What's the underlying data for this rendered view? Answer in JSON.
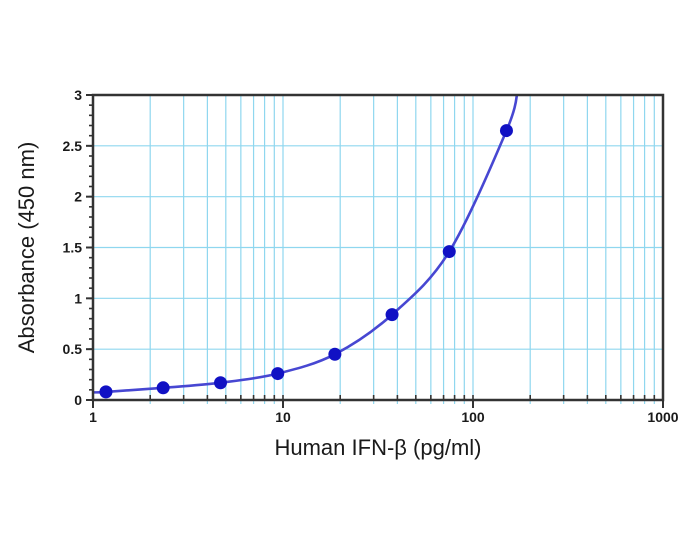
{
  "figure": {
    "kind": "elisa-standard-curve",
    "background": "#ffffff"
  },
  "chart_data": {
    "type": "scatter",
    "title": "",
    "xlabel": "Human IFN-β (pg/ml)",
    "ylabel": "Absorbance (450 nm)",
    "x_scale": "log",
    "xlim": [
      1,
      1000
    ],
    "ylim": [
      0,
      3
    ],
    "x_tick_labels": [
      "1",
      "10",
      "100",
      "1000"
    ],
    "x_tick_values": [
      1,
      10,
      100,
      1000
    ],
    "y_tick_labels": [
      "0",
      "0.5",
      "1",
      "1.5",
      "2",
      "2.5",
      "3"
    ],
    "y_tick_values": [
      0,
      0.5,
      1,
      1.5,
      2,
      2.5,
      3
    ],
    "y_minor_tick_step": 0.1,
    "grid": true,
    "x_gridline_values": [
      2,
      3,
      4,
      5,
      6,
      7,
      8,
      9,
      10,
      20,
      30,
      40,
      50,
      60,
      70,
      80,
      90,
      100,
      200,
      300,
      400,
      500,
      600,
      700,
      800,
      900
    ],
    "y_gridline_values": [
      0.5,
      1,
      1.5,
      2,
      2.5
    ],
    "series": [
      {
        "name": "standard-curve",
        "x": [
          1.17,
          2.34,
          4.69,
          9.38,
          18.75,
          37.5,
          75,
          150
        ],
        "y": [
          0.08,
          0.12,
          0.17,
          0.26,
          0.45,
          0.84,
          1.46,
          2.65
        ]
      }
    ],
    "curve_start": {
      "x": 1.0,
      "y": 0.075
    },
    "curve_exit_top": {
      "x": 172,
      "y": 3.05
    },
    "colors": {
      "grid": "#8fd7ef",
      "frame": "#333333",
      "curve": "#4747d2",
      "point": "#1111c4",
      "text": "#1a1a1a",
      "tick": "#333333"
    },
    "layout": {
      "plot_left": 93,
      "plot_top": 95,
      "plot_right": 663,
      "plot_bottom": 400,
      "point_radius": 6.5
    }
  }
}
